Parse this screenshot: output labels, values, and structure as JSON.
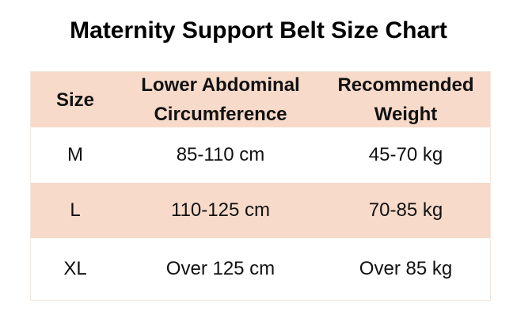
{
  "title": "Maternity Support Belt Size Chart",
  "table": {
    "header": [
      "Size",
      "Lower Abdominal Circumference",
      "Recommended Weight"
    ],
    "rows": [
      [
        "M",
        "85-110 cm",
        "45-70 kg"
      ],
      [
        "L",
        "110-125 cm",
        "70-85 kg"
      ],
      [
        "XL",
        "Over 125 cm",
        "Over 85 kg"
      ]
    ]
  }
}
